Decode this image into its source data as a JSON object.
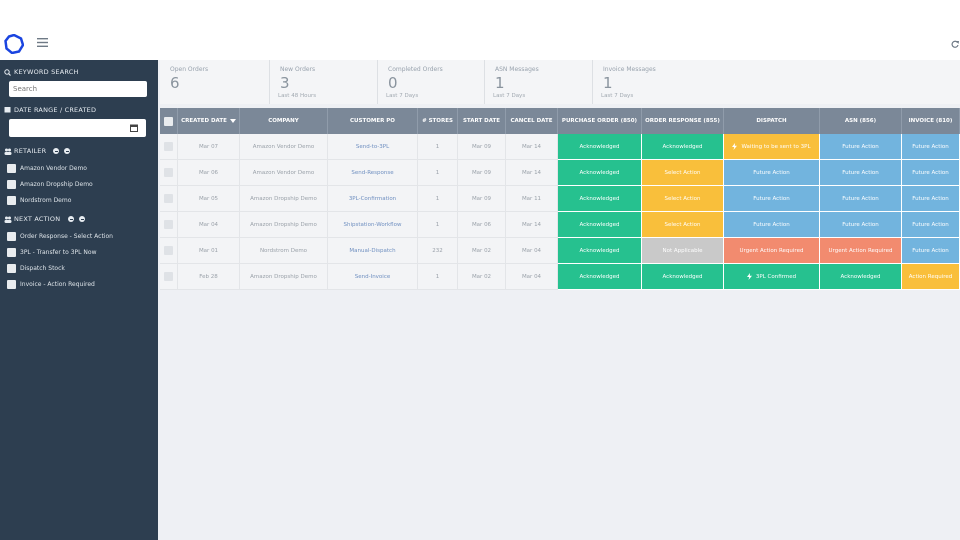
{
  "sidebar": {
    "keyword_search": {
      "label": "KEYWORD SEARCH",
      "placeholder": "Search"
    },
    "date_range": {
      "label": "DATE RANGE / CREATED"
    },
    "retailer": {
      "label": "RETAILER",
      "options": [
        "Amazon Vendor Demo",
        "Amazon Dropship Demo",
        "Nordstrom Demo"
      ]
    },
    "next_action": {
      "label": "NEXT ACTION",
      "options": [
        "Order Response - Select Action",
        "3PL - Transfer to 3PL Now",
        "Dispatch Stock",
        "Invoice - Action Required"
      ]
    }
  },
  "stats": [
    {
      "label": "Open Orders",
      "value": 6
    },
    {
      "label": "New Orders",
      "value": 3,
      "note": "Last 48 Hours"
    },
    {
      "label": "Completed Orders",
      "value": 0,
      "note": "Last 7 Days"
    },
    {
      "label": "ASN Messages",
      "value": 1,
      "note": "Last 7 Days"
    },
    {
      "label": "Invoice Messages",
      "value": 1,
      "note": "Last 7 Days"
    }
  ],
  "table": {
    "columns": [
      "CREATED DATE",
      "COMPANY",
      "CUSTOMER PO",
      "# STORES",
      "START DATE",
      "CANCEL DATE",
      "PURCHASE ORDER (850)",
      "ORDER RESPONSE (855)",
      "DISPATCH",
      "ASN (856)",
      "INVOICE (810)"
    ],
    "rows": [
      {
        "cells": [
          "Mar 07",
          "Amazon Vendor Demo",
          "Send-to-3PL",
          "1",
          "Mar 09",
          "Mar 14"
        ],
        "statuses": [
          {
            "label": "Acknowledged",
            "color": "#26c18f"
          },
          {
            "label": "Acknowledged",
            "color": "#26c18f"
          },
          {
            "label": "Waiting to be sent to 3PL",
            "color": "#f9bf3b",
            "icon": "bolt"
          },
          {
            "label": "Future Action",
            "color": "#72b4de"
          },
          {
            "label": "Future Action",
            "color": "#72b4de"
          }
        ]
      },
      {
        "cells": [
          "Mar 06",
          "Amazon Vendor Demo",
          "Send-Response",
          "1",
          "Mar 09",
          "Mar 14"
        ],
        "statuses": [
          {
            "label": "Acknowledged",
            "color": "#26c18f"
          },
          {
            "label": "Select Action",
            "color": "#f9bf3b"
          },
          {
            "label": "Future Action",
            "color": "#72b4de"
          },
          {
            "label": "Future Action",
            "color": "#72b4de"
          },
          {
            "label": "Future Action",
            "color": "#72b4de"
          }
        ]
      },
      {
        "cells": [
          "Mar 05",
          "Amazon Dropship Demo",
          "3PL-Confirmation",
          "1",
          "Mar 09",
          "Mar 11"
        ],
        "statuses": [
          {
            "label": "Acknowledged",
            "color": "#26c18f"
          },
          {
            "label": "Select Action",
            "color": "#f9bf3b"
          },
          {
            "label": "Future Action",
            "color": "#72b4de"
          },
          {
            "label": "Future Action",
            "color": "#72b4de"
          },
          {
            "label": "Future Action",
            "color": "#72b4de"
          }
        ]
      },
      {
        "cells": [
          "Mar 04",
          "Amazon Dropship Demo",
          "Shipstation-Workflow",
          "1",
          "Mar 06",
          "Mar 14"
        ],
        "statuses": [
          {
            "label": "Acknowledged",
            "color": "#26c18f"
          },
          {
            "label": "Select Action",
            "color": "#f9bf3b"
          },
          {
            "label": "Future Action",
            "color": "#72b4de"
          },
          {
            "label": "Future Action",
            "color": "#72b4de"
          },
          {
            "label": "Future Action",
            "color": "#72b4de"
          }
        ]
      },
      {
        "cells": [
          "Mar 01",
          "Nordstrom Demo",
          "Manual-Dispatch",
          "232",
          "Mar 02",
          "Mar 04"
        ],
        "statuses": [
          {
            "label": "Acknowledged",
            "color": "#26c18f"
          },
          {
            "label": "Not Applicable",
            "color": "#c9c9c9"
          },
          {
            "label": "Urgent Action Required",
            "color": "#f28b6f"
          },
          {
            "label": "Urgent Action Required",
            "color": "#f28b6f"
          },
          {
            "label": "Future Action",
            "color": "#72b4de"
          }
        ]
      },
      {
        "cells": [
          "Feb 28",
          "Amazon Dropship Demo",
          "Send-Invoice",
          "1",
          "Mar 02",
          "Mar 04"
        ],
        "statuses": [
          {
            "label": "Acknowledged",
            "color": "#26c18f"
          },
          {
            "label": "Acknowledged",
            "color": "#26c18f"
          },
          {
            "label": "3PL Confirmed",
            "color": "#26c18f",
            "icon": "bolt"
          },
          {
            "label": "Acknowledged",
            "color": "#26c18f"
          },
          {
            "label": "Action Required",
            "color": "#f9bf3b"
          }
        ]
      }
    ]
  }
}
